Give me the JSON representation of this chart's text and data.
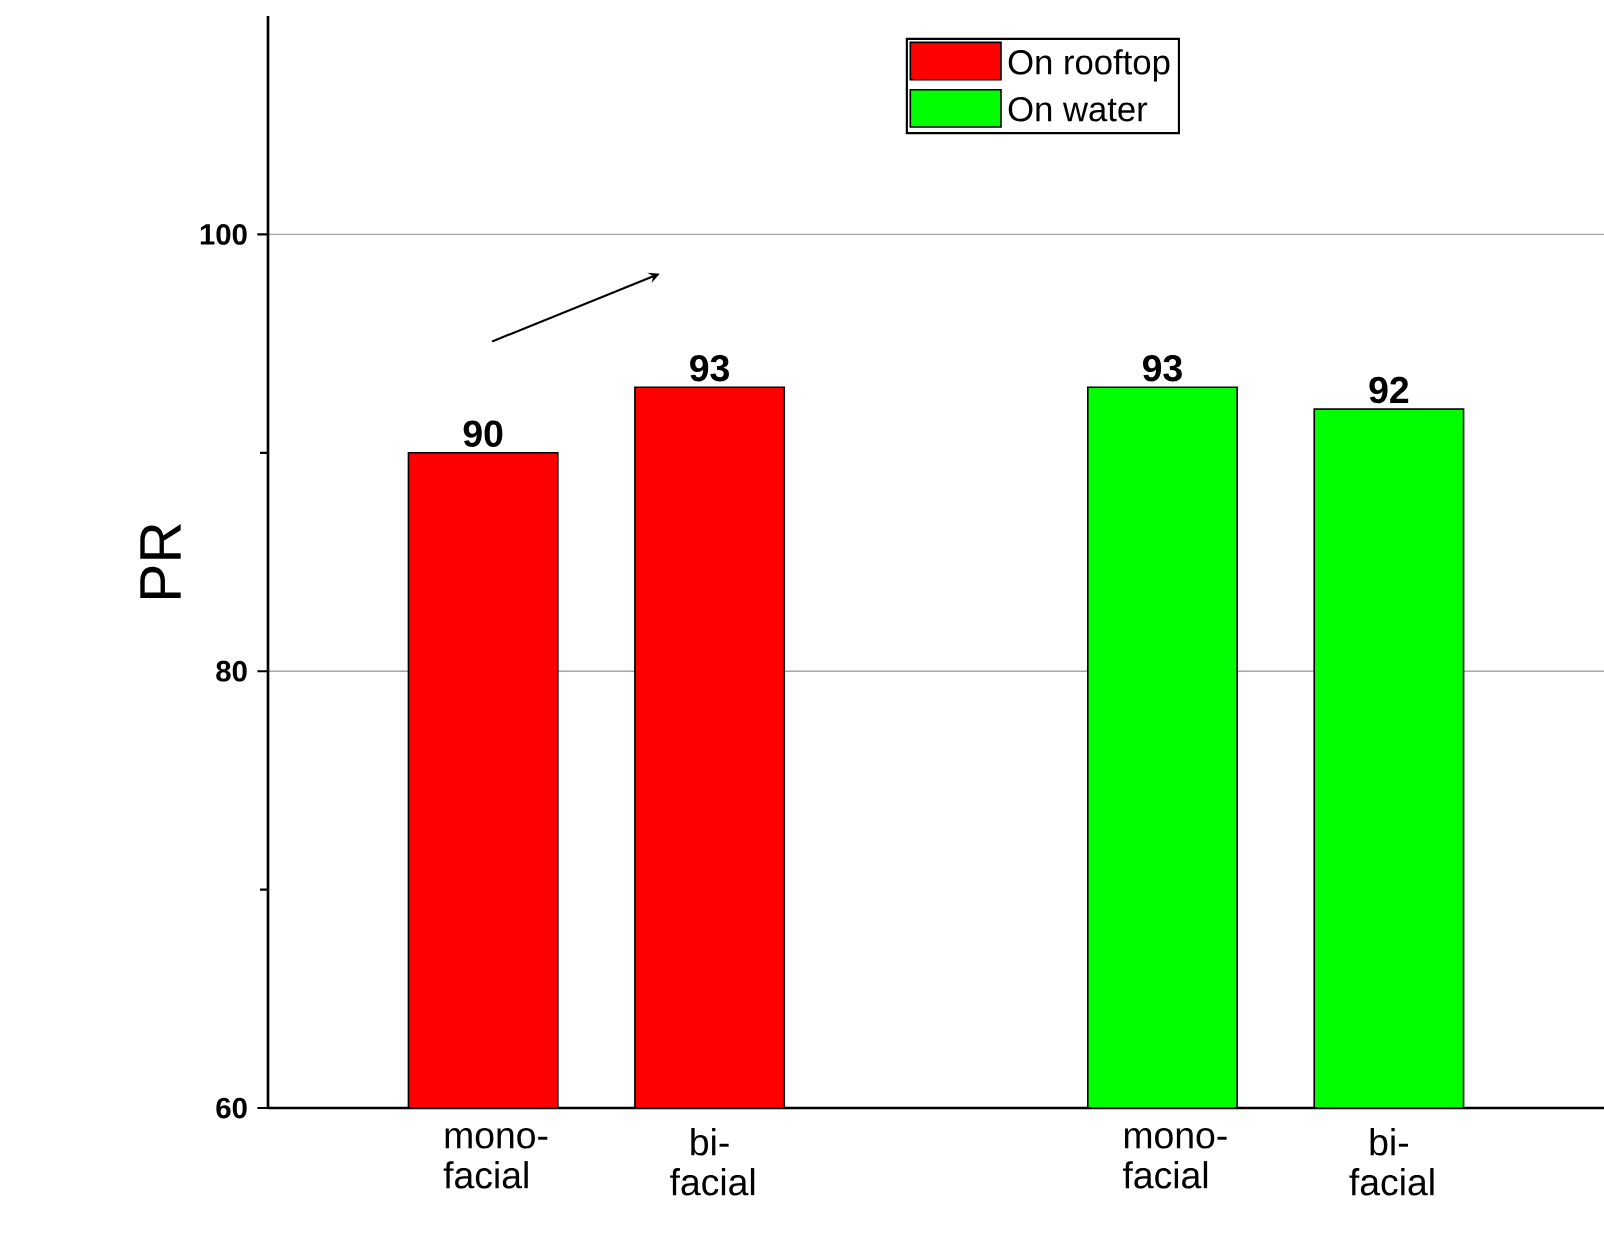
{
  "chart_data": {
    "type": "bar",
    "ylabel": "PR",
    "categories": [
      "mono-facial",
      "bi-facial",
      null,
      "mono-facial",
      "bi-facial"
    ],
    "series": [
      {
        "name": "On rooftop",
        "color": "#ff0000",
        "values": [
          90,
          93,
          null,
          null,
          null
        ]
      },
      {
        "name": "On water",
        "color": "#00ff00",
        "values": [
          null,
          null,
          null,
          93,
          92
        ]
      }
    ],
    "ylim": [
      60,
      110
    ],
    "yticks": [
      60,
      {
        "value": 70,
        "label": null
      },
      80,
      {
        "value": 90,
        "label": null
      },
      100
    ],
    "grid": "y",
    "legend": "top",
    "data_labels": true
  }
}
